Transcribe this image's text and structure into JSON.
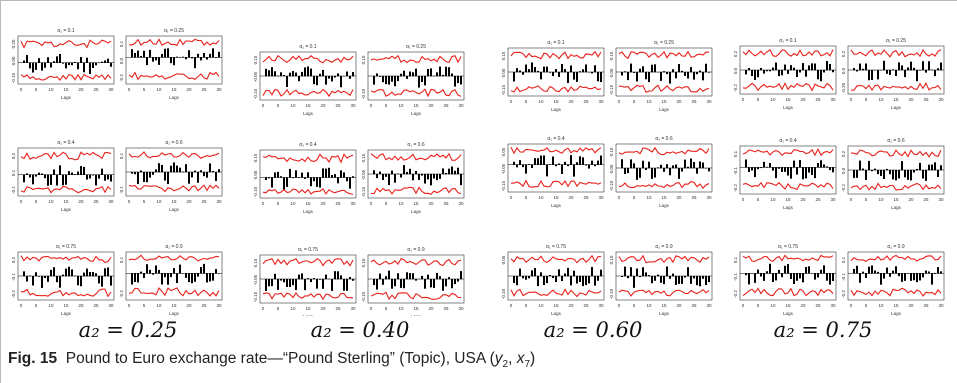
{
  "caption": {
    "fig_label": "Fig. 15",
    "text": "Pound to Euro exchange rate—“Pound Sterling” (Topic), USA (",
    "var_a": "y",
    "var_a_sub": "2",
    "sep": ", ",
    "var_b": "x",
    "var_b_sub": "7",
    "close": ")"
  },
  "groups": [
    {
      "label": "a₂ = 0.25"
    },
    {
      "label": "a₂ = 0.40"
    },
    {
      "label": "a₂ = 0.60"
    },
    {
      "label": "a₂ = 0.75"
    }
  ],
  "panel_titles": [
    "α₁ = 0.1",
    "α₁ = 0.25",
    "α₁ = 0.4",
    "α₁ = 0.6",
    "α₁ = 0.75",
    "α₁ = 0.9"
  ],
  "x_axis_label": "Lags",
  "x_ticks": [
    "0",
    "5",
    "10",
    "15",
    "20",
    "25",
    "30"
  ],
  "colors": {
    "band": "#e8201a",
    "bars": "#000000",
    "frame": "#b9b9b9"
  },
  "chart_data": [
    {
      "group": 0,
      "panels": [
        {
          "y_ticks": [
            "0.20",
            "0.00",
            "-0.15"
          ],
          "ylim": [
            -0.2,
            0.25
          ]
        },
        {
          "y_ticks": [
            "0.1",
            "0.0",
            "-0.2"
          ],
          "ylim": [
            -0.25,
            0.2
          ]
        },
        {
          "y_ticks": [
            "0.2",
            "0.1",
            "-0.1"
          ],
          "ylim": [
            -0.2,
            0.25
          ]
        },
        {
          "y_ticks": [
            "0.1",
            "-0.1"
          ],
          "ylim": [
            -0.2,
            0.2
          ]
        },
        {
          "y_ticks": [
            "0.2",
            "-0.1",
            "-0.2"
          ],
          "ylim": [
            -0.25,
            0.25
          ]
        },
        {
          "y_ticks": [
            "0.1",
            "-0.2"
          ],
          "ylim": [
            -0.25,
            0.2
          ]
        }
      ]
    },
    {
      "group": 1,
      "panels": [
        {
          "y_ticks": [
            "0.15",
            "-0.05",
            "-0.15"
          ],
          "ylim": [
            -0.2,
            0.2
          ]
        },
        {
          "y_ticks": [
            "0.10",
            "-0.10"
          ],
          "ylim": [
            -0.15,
            0.15
          ]
        },
        {
          "y_ticks": [
            "0.15",
            "0.05",
            "-0.10"
          ],
          "ylim": [
            -0.15,
            0.2
          ]
        },
        {
          "y_ticks": [
            "0.15",
            "-0.05",
            "-0.15"
          ],
          "ylim": [
            -0.2,
            0.2
          ]
        },
        {
          "y_ticks": [
            "0.15",
            "-0.05",
            "-0.15"
          ],
          "ylim": [
            -0.2,
            0.2
          ]
        },
        {
          "y_ticks": [
            "0.10",
            "-0.10"
          ],
          "ylim": [
            -0.15,
            0.15
          ]
        }
      ]
    },
    {
      "group": 2,
      "panels": [
        {
          "y_ticks": [
            "0.15",
            "0.00",
            "-0.15"
          ],
          "ylim": [
            -0.2,
            0.2
          ]
        },
        {
          "y_ticks": [
            "0.15",
            "0.00",
            "-0.15"
          ],
          "ylim": [
            -0.2,
            0.2
          ]
        },
        {
          "y_ticks": [
            "0.05",
            "-0.05",
            "-0.15"
          ],
          "ylim": [
            -0.2,
            0.15
          ]
        },
        {
          "y_ticks": [
            "0.10",
            "0.00",
            "-0.10"
          ],
          "ylim": [
            -0.15,
            0.15
          ]
        },
        {
          "y_ticks": [
            "0.05",
            "-0.10"
          ],
          "ylim": [
            -0.15,
            0.15
          ]
        },
        {
          "y_ticks": [
            "0.10",
            "-0.10"
          ],
          "ylim": [
            -0.15,
            0.15
          ]
        }
      ]
    },
    {
      "group": 3,
      "panels": [
        {
          "y_ticks": [
            "0.2",
            "0.0",
            "-0.2"
          ],
          "ylim": [
            -0.25,
            0.25
          ]
        },
        {
          "y_ticks": [
            "0.2",
            "0.0",
            "-0.20"
          ],
          "ylim": [
            -0.25,
            0.25
          ]
        },
        {
          "y_ticks": [
            "0.1",
            "-0.1",
            "-0.2"
          ],
          "ylim": [
            -0.25,
            0.2
          ]
        },
        {
          "y_ticks": [
            "0.2",
            "0.0",
            "-0.2"
          ],
          "ylim": [
            -0.25,
            0.25
          ]
        },
        {
          "y_ticks": [
            "0.1",
            "-0.1",
            "-0.2"
          ],
          "ylim": [
            -0.25,
            0.2
          ]
        },
        {
          "y_ticks": [
            "0.1",
            "-0.1",
            "-0.2"
          ],
          "ylim": [
            -0.25,
            0.2
          ]
        }
      ]
    }
  ]
}
